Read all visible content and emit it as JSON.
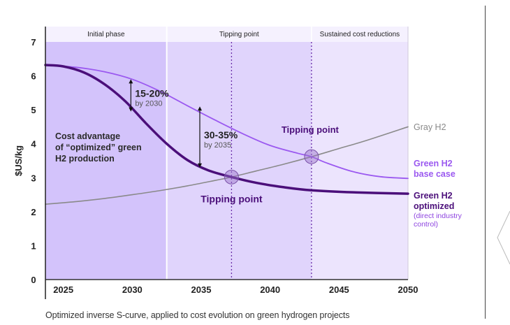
{
  "chart_data": {
    "type": "line",
    "title": "",
    "caption": "Optimized inverse S-curve, applied to cost evolution on green hydrogen projects",
    "xlabel": "",
    "ylabel": "$US/kg",
    "xlim": [
      2023.7,
      2050
    ],
    "ylim": [
      0,
      7
    ],
    "x_ticks": [
      "2025",
      "2030",
      "2035",
      "2040",
      "2045",
      "2050"
    ],
    "y_ticks": [
      "0",
      "1",
      "2",
      "3",
      "4",
      "5",
      "6",
      "7"
    ],
    "grid": false,
    "phases": [
      {
        "label": "Initial phase",
        "from": 2023.7,
        "to": 2032.5,
        "color": "#d3c3fb"
      },
      {
        "label": "Tipping point",
        "from": 2032.5,
        "to": 2043,
        "color": "#e0d4fc"
      },
      {
        "label": "Sustained cost reductions",
        "from": 2043,
        "to": 2050,
        "color": "#ece4fd"
      }
    ],
    "phase_header_color": "#f5f1fe",
    "dotted_markers": [
      2037.2,
      2043
    ],
    "series": [
      {
        "name": "Gray H2",
        "color": "#8a8a8a",
        "x": [
          2023.7,
          2026,
          2028,
          2030,
          2032,
          2034,
          2036,
          2037.2,
          2039,
          2041,
          2043,
          2045,
          2047,
          2050
        ],
        "values": [
          2.22,
          2.3,
          2.39,
          2.5,
          2.62,
          2.76,
          2.92,
          3.02,
          3.2,
          3.4,
          3.62,
          3.86,
          4.1,
          4.5
        ]
      },
      {
        "name": "Green H2 base case",
        "color": "#9b59f0",
        "x": [
          2023.7,
          2026,
          2028,
          2030,
          2032,
          2034,
          2036,
          2038,
          2040,
          2042,
          2043,
          2044,
          2046,
          2048,
          2050
        ],
        "values": [
          6.32,
          6.25,
          6.12,
          5.9,
          5.55,
          5.12,
          4.7,
          4.3,
          3.95,
          3.72,
          3.62,
          3.45,
          3.18,
          3.03,
          2.98
        ]
      },
      {
        "name": "Green H2 optimized",
        "color": "#4b0f7a",
        "x": [
          2023.7,
          2025,
          2026.5,
          2028,
          2029.5,
          2031,
          2032.5,
          2034,
          2035.5,
          2037.2,
          2039,
          2041,
          2043,
          2046,
          2050
        ],
        "values": [
          6.32,
          6.28,
          6.1,
          5.75,
          5.25,
          4.6,
          4.0,
          3.52,
          3.22,
          3.02,
          2.85,
          2.72,
          2.63,
          2.57,
          2.53
        ]
      }
    ],
    "tipping_points": [
      {
        "label": "Tipping point",
        "x": 2037.2,
        "y": 3.02
      },
      {
        "label": "Tipping point",
        "x": 2043,
        "y": 3.62
      }
    ],
    "annotations": [
      {
        "pct": "15-20%",
        "sub": "by 2030",
        "x": 2030,
        "y_from": 5.9,
        "y_to": 4.95
      },
      {
        "pct": "30-35%",
        "sub": "by 2035",
        "x": 2035,
        "y_from": 5.1,
        "y_to": 3.3
      }
    ],
    "region_note": [
      "Cost advantage",
      "of “optimized” green",
      "H2 production"
    ],
    "legend": [
      {
        "lines": [
          "Gray H2"
        ],
        "color": "#8a8a8a",
        "bold": false
      },
      {
        "lines": [
          "Green H2",
          "base case"
        ],
        "color": "#9b59f0",
        "bold": true
      },
      {
        "lines": [
          "Green H2",
          "optimized"
        ],
        "sub": [
          "(direct industry",
          "control)"
        ],
        "color": "#4b0f7a",
        "sub_color": "#8e44e0",
        "bold": true
      }
    ],
    "legend_placement": "right"
  }
}
